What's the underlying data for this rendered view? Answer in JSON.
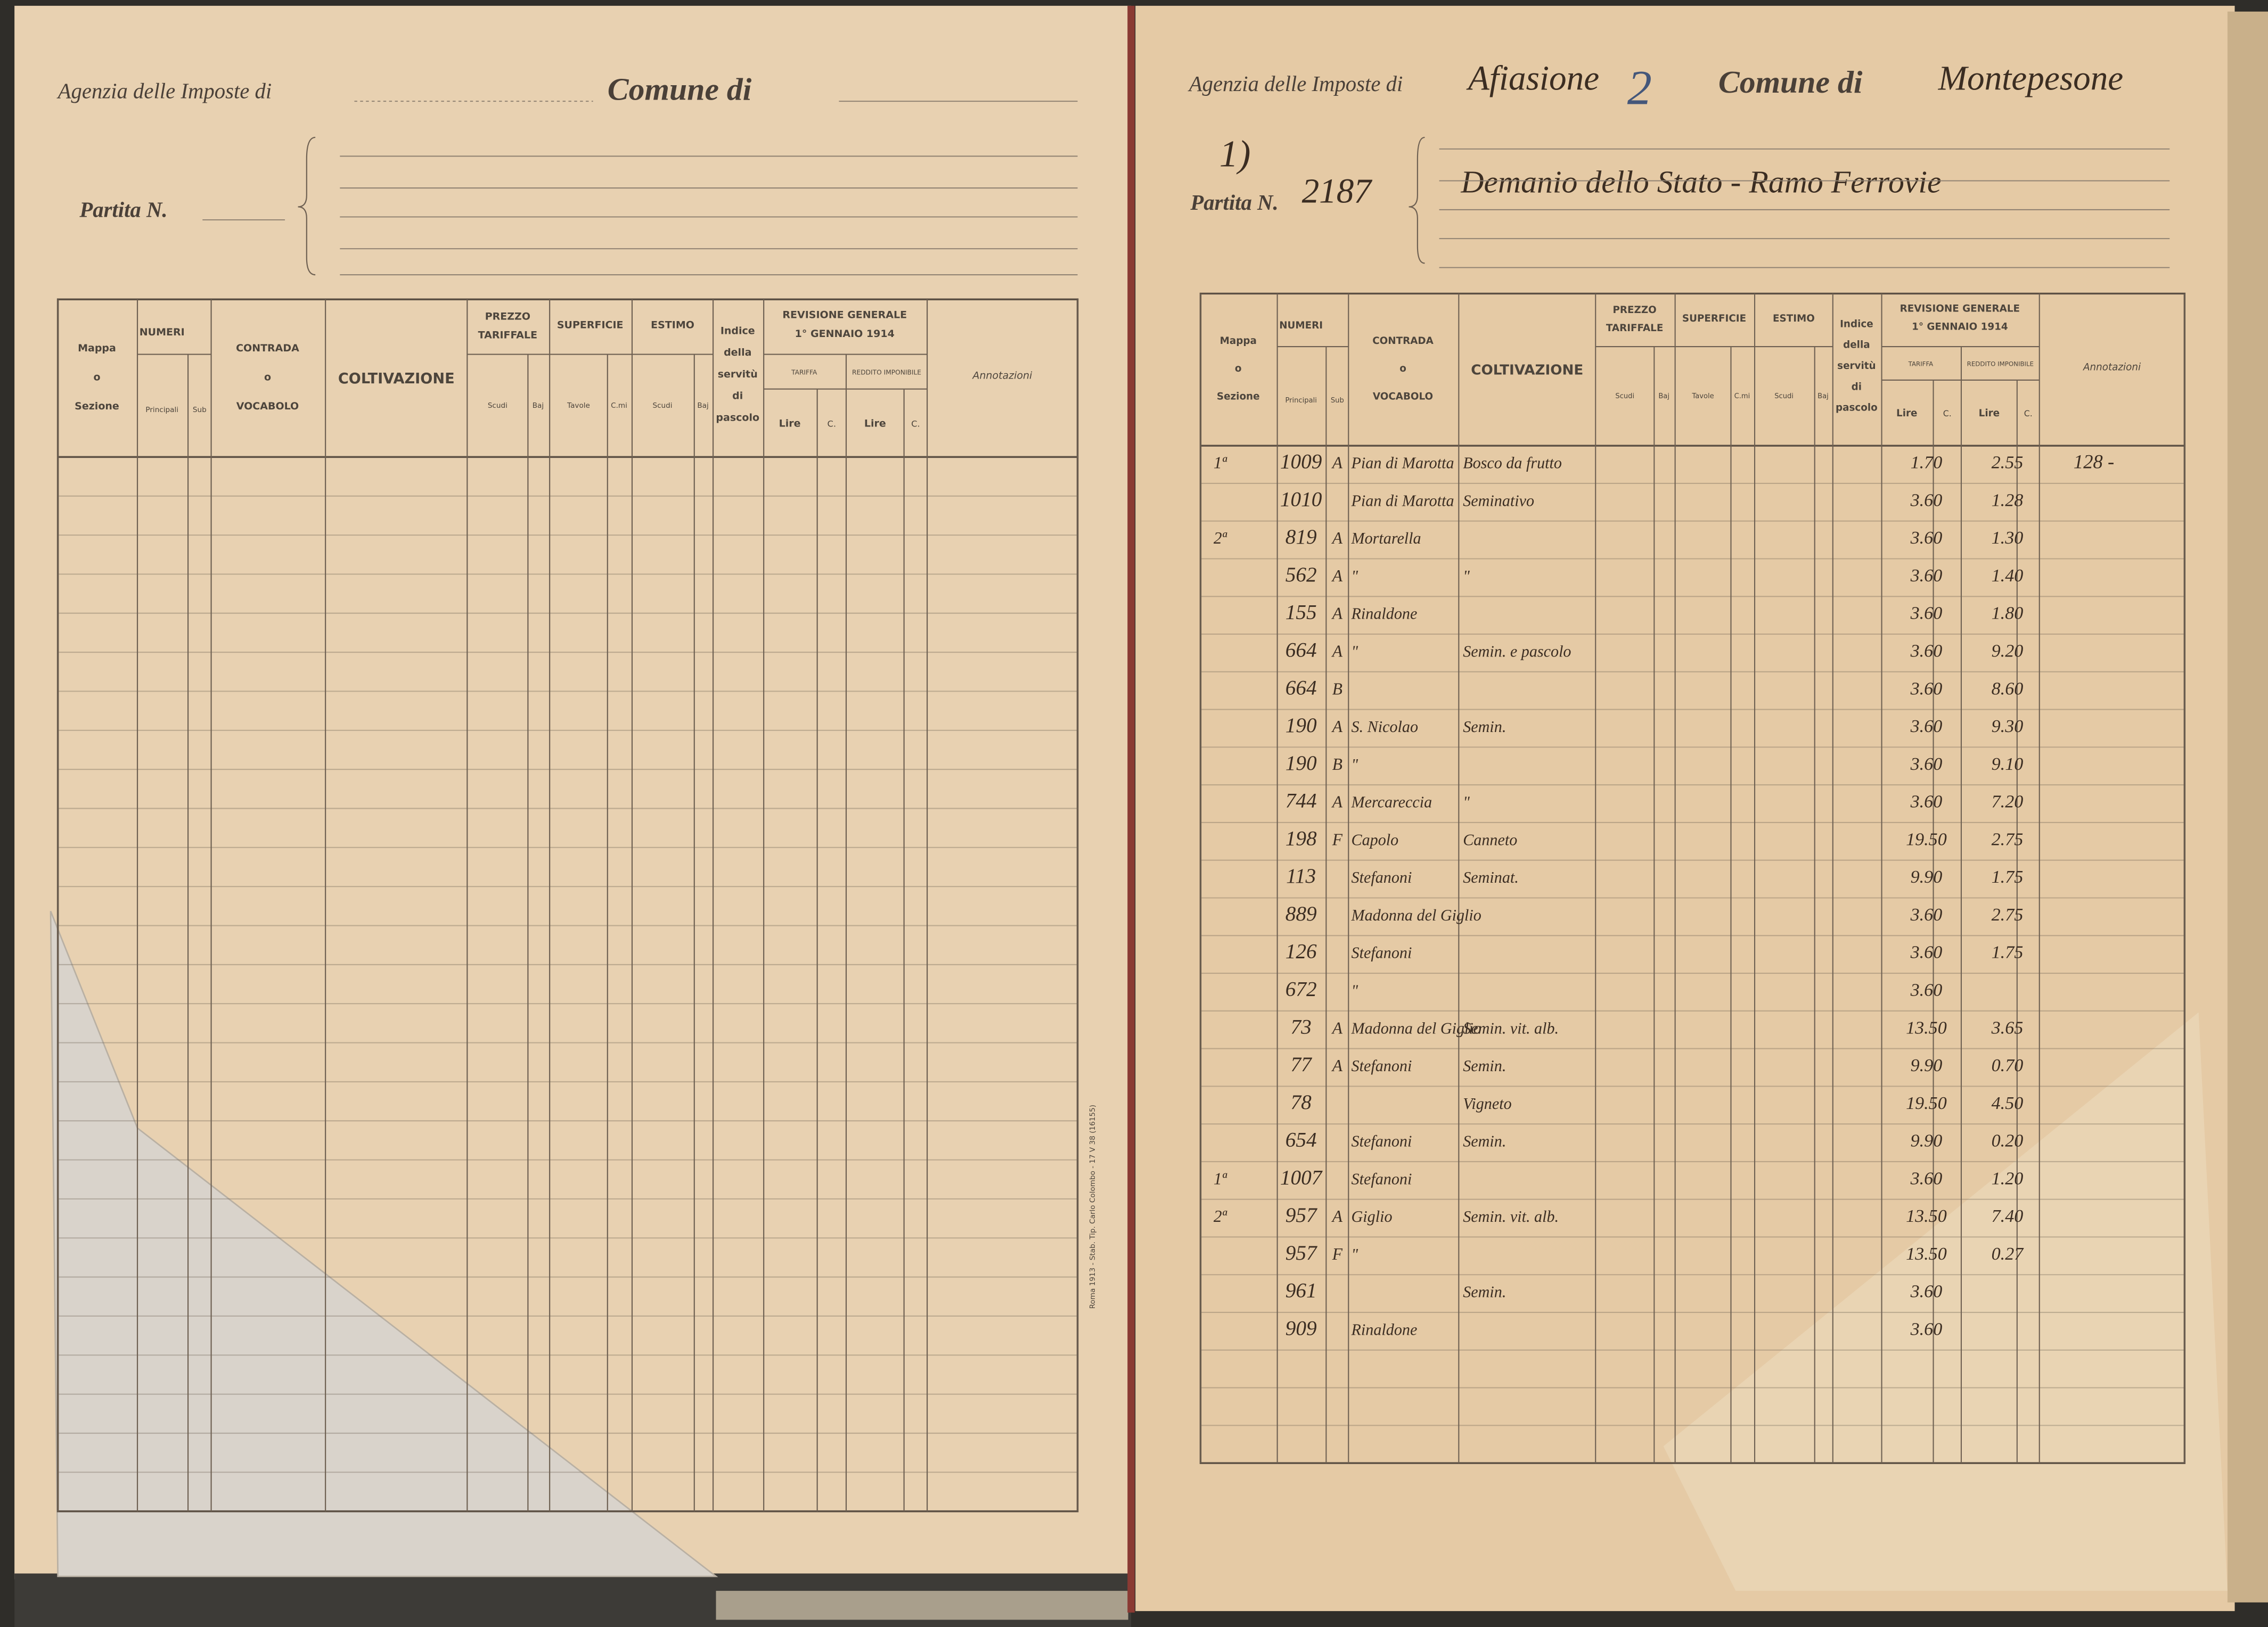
{
  "left_page": {
    "agency_label": "Agenzia delle Imposte di",
    "comune_label": "Comune di",
    "partita_label": "Partita N.",
    "imprint": "Roma 1913 - Stab. Tip. Carlo Colombo - 17 V 38 (16155)"
  },
  "right_page": {
    "agency_label": "Agenzia delle Imposte di",
    "agency_value": "Afiasione",
    "agency_number": "2",
    "comune_label": "Comune di",
    "comune_value": "Montepesone",
    "entry_marker": "1)",
    "partita_label": "Partita N.",
    "partita_value": "2187",
    "owner": "Demanio dello Stato - Ramo Ferrovie",
    "rows": [
      {
        "sezione": "1ª",
        "principale": "1009",
        "sub": "A",
        "contrada": "Pian di Marotta",
        "coltivazione": "Bosco da frutto",
        "tariffa": "1.70",
        "reddito": "2.55",
        "annotazioni": "128 -"
      },
      {
        "principale": "1010",
        "contrada": "Pian di Marotta",
        "coltivazione": "Seminativo",
        "tariffa": "3.60",
        "reddito": "1.28"
      },
      {
        "sezione": "2ª",
        "principale": "819",
        "sub": "A",
        "contrada": "Mortarella",
        "tariffa": "3.60",
        "reddito": "1.30"
      },
      {
        "principale": "562",
        "sub": "A",
        "contrada": "\"",
        "coltivazione": "\"",
        "tariffa": "3.60",
        "reddito": "1.40"
      },
      {
        "principale": "155",
        "sub": "A",
        "contrada": "Rinaldone",
        "tariffa": "3.60",
        "reddito": "1.80"
      },
      {
        "principale": "664",
        "sub": "A",
        "contrada": "\"",
        "coltivazione": "Semin. e pascolo",
        "tariffa": "3.60",
        "reddito": "9.20"
      },
      {
        "principale": "664",
        "sub": "B",
        "tariffa": "3.60",
        "reddito": "8.60"
      },
      {
        "principale": "190",
        "sub": "A",
        "contrada": "S. Nicolao",
        "coltivazione": "Semin.",
        "tariffa": "3.60",
        "reddito": "9.30"
      },
      {
        "principale": "190",
        "sub": "B",
        "contrada": "\"",
        "tariffa": "3.60",
        "reddito": "9.10"
      },
      {
        "principale": "744",
        "sub": "A",
        "contrada": "Mercareccia",
        "coltivazione": "\"",
        "tariffa": "3.60",
        "reddito": "7.20"
      },
      {
        "principale": "198",
        "sub": "F",
        "contrada": "Capolo",
        "coltivazione": "Canneto",
        "tariffa": "19.50",
        "reddito": "2.75"
      },
      {
        "principale": "113",
        "contrada": "Stefanoni",
        "coltivazione": "Seminat.",
        "tariffa": "9.90",
        "reddito": "1.75"
      },
      {
        "principale": "889",
        "contrada": "Madonna del Giglio",
        "tariffa": "3.60",
        "reddito": "2.75"
      },
      {
        "principale": "126",
        "contrada": "Stefanoni",
        "tariffa": "3.60",
        "reddito": "1.75"
      },
      {
        "principale": "672",
        "contrada": "\"",
        "tariffa": "3.60"
      },
      {
        "principale": "73",
        "sub": "A",
        "contrada": "Madonna del Giglio",
        "coltivazione": "Semin. vit. alb.",
        "tariffa": "13.50",
        "reddito": "3.65"
      },
      {
        "principale": "77",
        "sub": "A",
        "contrada": "Stefanoni",
        "coltivazione": "Semin.",
        "tariffa": "9.90",
        "reddito": "0.70"
      },
      {
        "principale": "78",
        "coltivazione": "Vigneto",
        "tariffa": "19.50",
        "reddito": "4.50"
      },
      {
        "principale": "654",
        "contrada": "Stefanoni",
        "coltivazione": "Semin.",
        "tariffa": "9.90",
        "reddito": "0.20"
      },
      {
        "sezione": "1ª",
        "principale": "1007",
        "contrada": "Stefanoni",
        "tariffa": "3.60",
        "reddito": "1.20"
      },
      {
        "sezione": "2ª",
        "principale": "957",
        "sub": "A",
        "contrada": "Giglio",
        "coltivazione": "Semin. vit. alb.",
        "tariffa": "13.50",
        "reddito": "7.40"
      },
      {
        "principale": "957",
        "sub": "F",
        "contrada": "\"",
        "tariffa": "13.50",
        "reddito": "0.27"
      },
      {
        "principale": "961",
        "coltivazione": "Semin.",
        "tariffa": "3.60"
      },
      {
        "principale": "909",
        "contrada": "Rinaldone",
        "tariffa": "3.60"
      }
    ]
  },
  "table_headers": {
    "mappa": [
      "Mappa",
      "o",
      "Sezione"
    ],
    "numeri": "NUMERI",
    "principali": "Principali",
    "sub": "Sub",
    "contrada": [
      "CONTRADA",
      "o",
      "VOCABOLO"
    ],
    "coltivazione": "COLTIVAZIONE",
    "prezzo": [
      "PREZZO",
      "TARIFFALE"
    ],
    "superficie": "SUPERFICIE",
    "estimo": "ESTIMO",
    "scudi": "Scudi",
    "baj": "Baj",
    "tavole": "Tavole",
    "centiare": "C.mi",
    "indice": [
      "Indice",
      "della",
      "servitù",
      "di",
      "pascolo"
    ],
    "revisione": [
      "REVISIONE GENERALE",
      "1° GENNAIO 1914"
    ],
    "tariffa": "TARIFFA",
    "reddito": "REDDITO IMPONIBILE",
    "lire": "Lire",
    "centesimi": "C.",
    "annotazioni": "Annotazioni"
  }
}
